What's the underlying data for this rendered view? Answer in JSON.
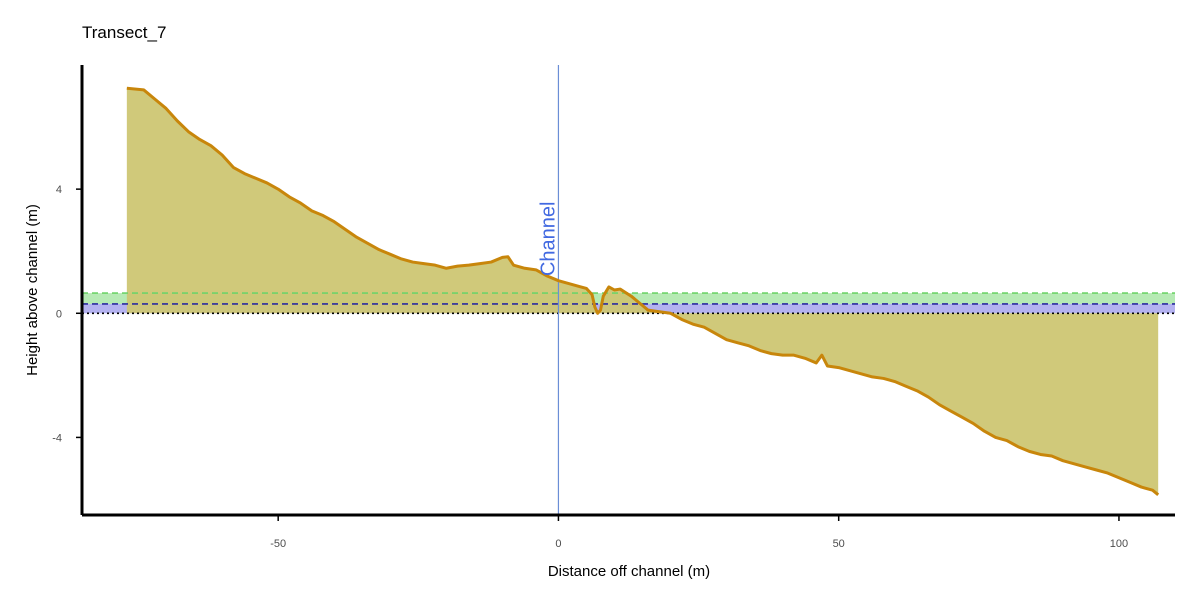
{
  "chart_data": {
    "type": "area",
    "title": "Transect_7",
    "xlabel": "Distance off channel (m)",
    "ylabel": "Height above channel (m)",
    "xlim": [
      -85,
      110
    ],
    "ylim": [
      -6.5,
      8
    ],
    "x_ticks": [
      -50,
      0,
      50,
      100
    ],
    "x_tick_labels": [
      "-50",
      "0",
      "50",
      "100"
    ],
    "y_ticks": [
      -4,
      0,
      4
    ],
    "y_tick_labels": [
      "-4",
      "0",
      "4"
    ],
    "grid": false,
    "channel": {
      "x": 0,
      "label": "Channel",
      "color": "#6b8ed6",
      "label_color": "#4169e1"
    },
    "bands": [
      {
        "name": "band-upper",
        "from": 0.3,
        "to": 0.65,
        "color": "#b6eab4",
        "line_y": 0.65,
        "line_color": "#6fd36a"
      },
      {
        "name": "band-lower",
        "from": 0.0,
        "to": 0.3,
        "color": "#b4b2f0",
        "line_y": 0.3,
        "line_color": "#2b2ba0"
      }
    ],
    "zero_line": {
      "y": 0,
      "style": "dotted",
      "color": "#000000"
    },
    "fill_color": "#cdc673",
    "line_color": "#c8860b",
    "profile": [
      [
        -77,
        7.25
      ],
      [
        -74,
        7.2
      ],
      [
        -72,
        6.9
      ],
      [
        -70,
        6.6
      ],
      [
        -68,
        6.2
      ],
      [
        -66,
        5.85
      ],
      [
        -64,
        5.6
      ],
      [
        -62,
        5.4
      ],
      [
        -60,
        5.1
      ],
      [
        -58,
        4.7
      ],
      [
        -56,
        4.5
      ],
      [
        -54,
        4.35
      ],
      [
        -52,
        4.2
      ],
      [
        -50,
        4.0
      ],
      [
        -48,
        3.75
      ],
      [
        -46,
        3.55
      ],
      [
        -44,
        3.3
      ],
      [
        -42,
        3.15
      ],
      [
        -40,
        2.95
      ],
      [
        -38,
        2.7
      ],
      [
        -36,
        2.45
      ],
      [
        -34,
        2.25
      ],
      [
        -32,
        2.05
      ],
      [
        -30,
        1.9
      ],
      [
        -28,
        1.75
      ],
      [
        -26,
        1.65
      ],
      [
        -24,
        1.6
      ],
      [
        -22,
        1.55
      ],
      [
        -20,
        1.45
      ],
      [
        -18,
        1.52
      ],
      [
        -16,
        1.55
      ],
      [
        -14,
        1.6
      ],
      [
        -12,
        1.65
      ],
      [
        -10,
        1.8
      ],
      [
        -9,
        1.82
      ],
      [
        -8,
        1.55
      ],
      [
        -6,
        1.45
      ],
      [
        -4,
        1.4
      ],
      [
        -2,
        1.2
      ],
      [
        0,
        1.05
      ],
      [
        2,
        0.95
      ],
      [
        4,
        0.85
      ],
      [
        5,
        0.8
      ],
      [
        6,
        0.6
      ],
      [
        6.5,
        0.2
      ],
      [
        7,
        0.0
      ],
      [
        7.5,
        0.1
      ],
      [
        8,
        0.55
      ],
      [
        9,
        0.85
      ],
      [
        10,
        0.75
      ],
      [
        11,
        0.78
      ],
      [
        13,
        0.55
      ],
      [
        15,
        0.25
      ],
      [
        16,
        0.1
      ],
      [
        18,
        0.05
      ],
      [
        20,
        0.0
      ],
      [
        22,
        -0.2
      ],
      [
        24,
        -0.35
      ],
      [
        26,
        -0.45
      ],
      [
        28,
        -0.65
      ],
      [
        30,
        -0.85
      ],
      [
        32,
        -0.95
      ],
      [
        34,
        -1.05
      ],
      [
        36,
        -1.2
      ],
      [
        38,
        -1.3
      ],
      [
        40,
        -1.35
      ],
      [
        42,
        -1.35
      ],
      [
        44,
        -1.45
      ],
      [
        46,
        -1.6
      ],
      [
        47,
        -1.35
      ],
      [
        48,
        -1.7
      ],
      [
        50,
        -1.75
      ],
      [
        52,
        -1.85
      ],
      [
        54,
        -1.95
      ],
      [
        56,
        -2.05
      ],
      [
        58,
        -2.1
      ],
      [
        60,
        -2.2
      ],
      [
        62,
        -2.35
      ],
      [
        64,
        -2.5
      ],
      [
        66,
        -2.7
      ],
      [
        68,
        -2.95
      ],
      [
        70,
        -3.15
      ],
      [
        72,
        -3.35
      ],
      [
        74,
        -3.55
      ],
      [
        76,
        -3.8
      ],
      [
        78,
        -4.0
      ],
      [
        80,
        -4.1
      ],
      [
        82,
        -4.3
      ],
      [
        84,
        -4.45
      ],
      [
        86,
        -4.55
      ],
      [
        88,
        -4.6
      ],
      [
        90,
        -4.75
      ],
      [
        92,
        -4.85
      ],
      [
        94,
        -4.95
      ],
      [
        96,
        -5.05
      ],
      [
        98,
        -5.15
      ],
      [
        100,
        -5.3
      ],
      [
        102,
        -5.45
      ],
      [
        104,
        -5.6
      ],
      [
        106,
        -5.7
      ],
      [
        107,
        -5.85
      ]
    ]
  }
}
